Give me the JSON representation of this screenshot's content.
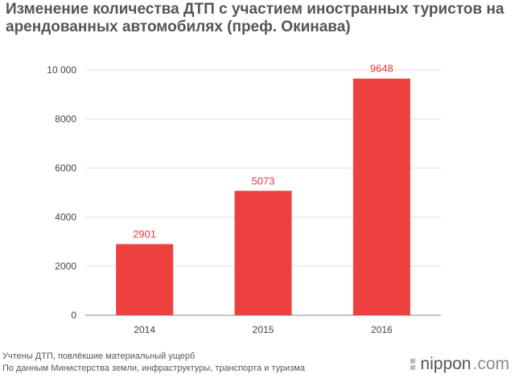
{
  "chart_data": {
    "type": "bar",
    "title": "Изменение количества ДТП с участием иностранных туристов на арендованных автомобилях (преф. Окинава)",
    "categories": [
      "2014",
      "2015",
      "2016"
    ],
    "values": [
      2901,
      5073,
      9648
    ],
    "data_labels": [
      "2901",
      "5073",
      "9648"
    ],
    "y_ticks": [
      0,
      2000,
      4000,
      6000,
      8000,
      10000
    ],
    "y_tick_labels": [
      "0",
      "2000",
      "4000",
      "6000",
      "8000",
      "10 000"
    ],
    "ylim": [
      0,
      10000
    ],
    "xlabel": "",
    "ylabel": "",
    "grid": true,
    "bar_color": "#ef4040",
    "label_color": "#e8383c",
    "grid_color": "#e0e0e0"
  },
  "footnotes": {
    "note1": "Учтены ДТП, повлёкшие материальный ущерб",
    "note2": "По данным Министерства земли, инфраструктуры, транспорта и туризма"
  },
  "brand": {
    "name": "nippon",
    "suffix": ".com",
    "logo_icon": "nippon-logo-icon"
  }
}
